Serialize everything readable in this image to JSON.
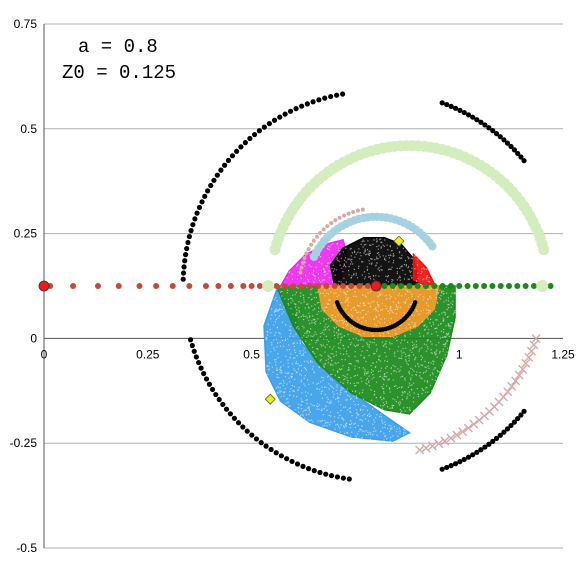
{
  "chart_data": {
    "type": "scatter",
    "title": "",
    "xlabel": "",
    "ylabel": "",
    "xlim": [
      0,
      1.25
    ],
    "ylim": [
      -0.5,
      0.75
    ],
    "x_ticks": [
      {
        "value": 0,
        "label": "0"
      },
      {
        "value": 0.25,
        "label": "0.25"
      },
      {
        "value": 0.5,
        "label": "0.5"
      },
      {
        "value": 1.0,
        "label": "1"
      },
      {
        "value": 1.25,
        "label": "1.25"
      }
    ],
    "y_ticks": [
      {
        "value": 0.75,
        "label": "0.75"
      },
      {
        "value": 0.5,
        "label": "0.5"
      },
      {
        "value": 0.25,
        "label": "0.25"
      },
      {
        "value": 0,
        "label": "0"
      },
      {
        "value": -0.25,
        "label": "-0.25"
      },
      {
        "value": -0.5,
        "label": "-0.5"
      }
    ],
    "grid": "horizontal",
    "legend": "none",
    "annotations": [
      {
        "text": "a = 0.8"
      },
      {
        "text": "Z0 = 0.125"
      }
    ],
    "colors": {
      "black": "#000000",
      "light_green": "#d3edbe",
      "light_blue": "#a6d1e0",
      "pink_x": "#d8a8a8",
      "magenta": "#ee28ee",
      "red": "#ee1111",
      "orange": "#f59a2c",
      "green": "#1a8a1a",
      "sky_blue": "#3a9ee8",
      "brown_red": "#c44a36",
      "marker_red": "#e81c1c",
      "marker_yellow": "#e6ee2a",
      "grid": "#b0b0b0"
    },
    "regions": [
      {
        "name": "blue",
        "color": "#3a9ee8",
        "polygon": [
          [
            0.56,
            0.115
          ],
          [
            0.53,
            0.03
          ],
          [
            0.535,
            -0.08
          ],
          [
            0.57,
            -0.15
          ],
          [
            0.64,
            -0.2
          ],
          [
            0.74,
            -0.235
          ],
          [
            0.84,
            -0.245
          ],
          [
            0.88,
            -0.225
          ],
          [
            0.8,
            -0.17
          ],
          [
            0.7,
            -0.1
          ],
          [
            0.62,
            -0.01
          ],
          [
            0.6,
            0.08
          ]
        ]
      },
      {
        "name": "green",
        "color": "#1a8a1a",
        "polygon": [
          [
            0.56,
            0.125
          ],
          [
            0.6,
            0.03
          ],
          [
            0.66,
            -0.06
          ],
          [
            0.74,
            -0.13
          ],
          [
            0.82,
            -0.17
          ],
          [
            0.88,
            -0.18
          ],
          [
            0.93,
            -0.13
          ],
          [
            0.97,
            -0.04
          ],
          [
            0.99,
            0.05
          ],
          [
            0.99,
            0.125
          ]
        ]
      },
      {
        "name": "magenta",
        "color": "#ee28ee",
        "polygon": [
          [
            0.57,
            0.125
          ],
          [
            0.59,
            0.16
          ],
          [
            0.63,
            0.2
          ],
          [
            0.68,
            0.225
          ],
          [
            0.72,
            0.235
          ],
          [
            0.73,
            0.2
          ],
          [
            0.71,
            0.13
          ]
        ]
      },
      {
        "name": "black",
        "color": "#000000",
        "polygon": [
          [
            0.7,
            0.125
          ],
          [
            0.69,
            0.175
          ],
          [
            0.72,
            0.215
          ],
          [
            0.77,
            0.24
          ],
          [
            0.82,
            0.24
          ],
          [
            0.86,
            0.225
          ],
          [
            0.89,
            0.19
          ],
          [
            0.9,
            0.15
          ],
          [
            0.9,
            0.125
          ]
        ]
      },
      {
        "name": "red",
        "color": "#ee1111",
        "polygon": [
          [
            0.89,
            0.2
          ],
          [
            0.92,
            0.17
          ],
          [
            0.94,
            0.13
          ],
          [
            0.92,
            0.125
          ],
          [
            0.89,
            0.14
          ]
        ]
      },
      {
        "name": "orange",
        "color": "#f59a2c",
        "polygon": [
          [
            0.66,
            0.125
          ],
          [
            0.67,
            0.07
          ],
          [
            0.71,
            0.03
          ],
          [
            0.77,
            0.005
          ],
          [
            0.84,
            0.005
          ],
          [
            0.9,
            0.03
          ],
          [
            0.94,
            0.07
          ],
          [
            0.95,
            0.125
          ]
        ]
      }
    ],
    "series": [
      {
        "kind": "arc",
        "color": "#000000",
        "marker": "dot",
        "size": 2.6,
        "center": [
          0.8,
          0.125
        ],
        "radius": 0.465,
        "start_deg": 100,
        "end_deg": 178,
        "count": 44
      },
      {
        "kind": "arc",
        "color": "#000000",
        "marker": "dot",
        "size": 2.6,
        "center": [
          0.8,
          0.125
        ],
        "radius": 0.465,
        "start_deg": 196,
        "end_deg": 262,
        "count": 38
      },
      {
        "kind": "arc",
        "color": "#000000",
        "marker": "dot",
        "size": 2.6,
        "center": [
          0.8,
          0.125
        ],
        "radius": 0.465,
        "start_deg": 40,
        "end_deg": 70,
        "count": 22
      },
      {
        "kind": "arc",
        "color": "#000000",
        "marker": "dot",
        "size": 2.6,
        "center": [
          0.8,
          0.125
        ],
        "radius": 0.465,
        "start_deg": -70,
        "end_deg": -40,
        "count": 22
      },
      {
        "kind": "arc",
        "color": "#d3edbe",
        "marker": "dot",
        "size": 5.5,
        "center": [
          0.88,
          0.125
        ],
        "radius": 0.335,
        "start_deg": 15,
        "end_deg": 165,
        "count": 62
      },
      {
        "kind": "arc",
        "color": "#a6d1e0",
        "marker": "dot",
        "size": 4.2,
        "center": [
          0.8,
          0.125
        ],
        "radius": 0.165,
        "start_deg": 35,
        "end_deg": 155,
        "count": 32
      },
      {
        "kind": "arc",
        "color": "#d8a8a8",
        "marker": "x",
        "size": 4,
        "center": [
          0.8,
          0.125
        ],
        "radius": 0.405,
        "start_deg": -75,
        "end_deg": -18,
        "count": 26
      },
      {
        "kind": "arc",
        "color": "#d8a8a8",
        "marker": "dot",
        "size": 2,
        "center": [
          0.8,
          0.125
        ],
        "radius": 0.185,
        "start_deg": 100,
        "end_deg": 170,
        "count": 20
      },
      {
        "kind": "arc",
        "color": "#000000",
        "marker": "dot",
        "size": 2.3,
        "center": [
          0.8,
          0.12
        ],
        "radius": 0.1,
        "start_deg": 200,
        "end_deg": 340,
        "count": 40
      },
      {
        "kind": "points",
        "color": "#c44a36",
        "marker": "dot",
        "size": 3,
        "points": [
          [
            0,
            0.125
          ],
          [
            0.015,
            0.125
          ],
          [
            0.07,
            0.125
          ],
          [
            0.13,
            0.125
          ],
          [
            0.18,
            0.125
          ],
          [
            0.23,
            0.125
          ],
          [
            0.27,
            0.125
          ],
          [
            0.31,
            0.125
          ],
          [
            0.35,
            0.125
          ],
          [
            0.39,
            0.125
          ],
          [
            0.42,
            0.125
          ],
          [
            0.45,
            0.125
          ],
          [
            0.48,
            0.125
          ],
          [
            0.5,
            0.125
          ],
          [
            0.52,
            0.125
          ],
          [
            0.54,
            0.125
          ],
          [
            0.56,
            0.125
          ],
          [
            0.58,
            0.125
          ],
          [
            0.6,
            0.125
          ],
          [
            0.62,
            0.125
          ],
          [
            0.64,
            0.125
          ],
          [
            0.66,
            0.125
          ],
          [
            0.68,
            0.125
          ],
          [
            0.7,
            0.125
          ],
          [
            0.72,
            0.125
          ],
          [
            0.74,
            0.125
          ],
          [
            0.76,
            0.125
          ],
          [
            0.78,
            0.125
          ]
        ]
      },
      {
        "kind": "points",
        "color": "#1a8a1a",
        "marker": "dot",
        "size": 3,
        "points": [
          [
            0.82,
            0.125
          ],
          [
            0.84,
            0.125
          ],
          [
            0.86,
            0.125
          ],
          [
            0.88,
            0.125
          ],
          [
            0.9,
            0.125
          ],
          [
            0.92,
            0.125
          ],
          [
            0.94,
            0.125
          ],
          [
            0.96,
            0.125
          ],
          [
            0.98,
            0.125
          ],
          [
            1.0,
            0.125
          ],
          [
            1.02,
            0.125
          ],
          [
            1.04,
            0.125
          ],
          [
            1.06,
            0.125
          ],
          [
            1.08,
            0.125
          ],
          [
            1.1,
            0.125
          ],
          [
            1.12,
            0.125
          ],
          [
            1.14,
            0.125
          ],
          [
            1.16,
            0.125
          ],
          [
            1.18,
            0.125
          ],
          [
            1.2,
            0.125
          ],
          [
            1.22,
            0.125
          ]
        ]
      },
      {
        "kind": "points",
        "color": "#d3edbe",
        "marker": "dot",
        "size": 6,
        "points": [
          [
            0.54,
            0.125
          ],
          [
            1.2,
            0.125
          ]
        ]
      },
      {
        "kind": "points",
        "color": "#e81c1c",
        "marker": "dot",
        "size": 5,
        "points": [
          [
            0.8,
            0.125
          ],
          [
            0,
            0.125
          ]
        ]
      },
      {
        "kind": "points",
        "color": "#e6ee2a",
        "marker": "diamond",
        "size": 5,
        "points": [
          [
            0.855,
            0.232
          ],
          [
            0.545,
            -0.145
          ]
        ]
      }
    ]
  }
}
